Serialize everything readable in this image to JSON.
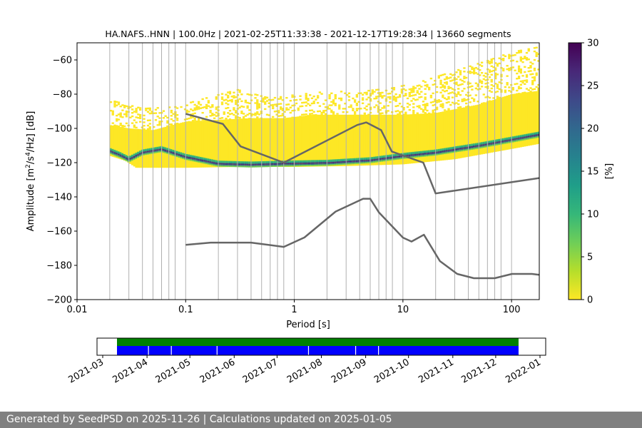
{
  "chart_data": [
    {
      "type": "heatmap",
      "title": "HA.NAFS..HNN | 100.0Hz | 2021-02-25T11:33:38 - 2021-12-17T19:28:34 | 13660 segments",
      "xlabel": "Period [s]",
      "ylabel_main": "Amplitude [m",
      "ylabel_unit_a": "2",
      "ylabel_mid": "/s",
      "ylabel_unit_b": "4",
      "ylabel_end": "/Hz] [dB]",
      "xscale": "log",
      "xlim": [
        0.01,
        180
      ],
      "ylim": [
        -200,
        -50
      ],
      "x_ticks": [
        0.01,
        0.1,
        1,
        10,
        100
      ],
      "x_tick_labels": [
        "0.01",
        "0.1",
        "1",
        "10",
        "100"
      ],
      "y_ticks": [
        -200,
        -180,
        -160,
        -140,
        -120,
        -100,
        -80,
        -60
      ],
      "y_tick_labels": [
        "−200",
        "−180",
        "−160",
        "−140",
        "−120",
        "−100",
        "−80",
        "−60"
      ],
      "vertical_grid_periods": [
        0.02,
        0.03,
        0.04,
        0.05,
        0.06,
        0.07,
        0.08,
        0.1,
        0.2,
        0.3,
        0.4,
        0.5,
        0.6,
        0.7,
        0.8,
        1,
        2,
        3,
        4,
        5,
        6,
        7,
        8,
        10,
        20,
        30,
        40,
        50,
        60,
        70,
        80,
        100
      ],
      "noise_model_high": {
        "period": [
          0.1,
          0.22,
          0.32,
          0.8,
          3.8,
          4.6,
          6.3,
          7.9,
          15.4,
          20,
          180
        ],
        "db": [
          -91.5,
          -97.4,
          -110.5,
          -120,
          -98,
          -96.5,
          -101,
          -113.5,
          -120,
          -138,
          -129
        ]
      },
      "noise_model_low": {
        "period": [
          0.1,
          0.17,
          0.4,
          0.8,
          1.24,
          2.4,
          4.3,
          5,
          6,
          10,
          12,
          15.6,
          21.9,
          31.6,
          45,
          70,
          101,
          154,
          180
        ],
        "db": [
          -168,
          -166.7,
          -166.7,
          -169.2,
          -163.7,
          -148.6,
          -141.1,
          -141.1,
          -149,
          -163.8,
          -166.1,
          -162.1,
          -177.5,
          -185,
          -187.5,
          -187.5,
          -185,
          -185,
          -185.5
        ]
      },
      "colorbar": {
        "label": "[%]",
        "range": [
          0,
          30
        ],
        "ticks": [
          0,
          5,
          10,
          15,
          20,
          25,
          30
        ],
        "tick_labels": [
          "0",
          "5",
          "10",
          "15",
          "20",
          "25",
          "30"
        ],
        "colors": [
          "#fde725",
          "#b5de2b",
          "#6ece58",
          "#35b779",
          "#1f9e89",
          "#26828e",
          "#31688e",
          "#3e4989",
          "#482878",
          "#440154"
        ]
      },
      "psd_distribution": {
        "mode_curve": {
          "period": [
            0.02,
            0.025,
            0.03,
            0.04,
            0.06,
            0.1,
            0.2,
            0.4,
            0.8,
            2,
            5,
            10,
            20,
            50,
            100,
            180
          ],
          "db": [
            -113,
            -115.5,
            -118,
            -114,
            -112,
            -116.5,
            -120.5,
            -121,
            -120.5,
            -120,
            -118.5,
            -116,
            -114,
            -110,
            -106.5,
            -103.5
          ]
        },
        "upper_edge": {
          "period": [
            0.02,
            0.03,
            0.05,
            0.1,
            0.2,
            0.4,
            0.8,
            1.5,
            3,
            6,
            10,
            20,
            50,
            100,
            180
          ],
          "db": [
            -98,
            -100,
            -101,
            -96,
            -95,
            -94,
            -94,
            -92,
            -92,
            -92,
            -92,
            -91,
            -86,
            -80,
            -78
          ]
        },
        "lower_edge": {
          "period": [
            0.02,
            0.028,
            0.035,
            0.1,
            0.3,
            1,
            3,
            10,
            30,
            100,
            180
          ],
          "db": [
            -116,
            -119,
            -123,
            -123,
            -122.5,
            -122.5,
            -122,
            -121,
            -118,
            -112,
            -109
          ]
        },
        "outlier_upper": {
          "period": [
            0.02,
            0.04,
            0.08,
            0.15,
            0.3,
            0.6,
            1,
            2,
            4,
            8,
            15,
            30,
            60,
            100,
            180
          ],
          "db": [
            -83,
            -88,
            -87,
            -82,
            -77,
            -82,
            -80,
            -78,
            -78,
            -76,
            -72,
            -66,
            -60,
            -55,
            -52
          ]
        }
      }
    },
    {
      "type": "timeline",
      "x_ticks": [
        "2021-03",
        "2021-04",
        "2021-05",
        "2021-06",
        "2021-07",
        "2021-08",
        "2021-09",
        "2021-10",
        "2021-11",
        "2021-12",
        "2022-01"
      ],
      "xlim": [
        "2021-02-25",
        "2022-01-05"
      ],
      "data_start": "2021-02-25",
      "data_end": "2021-12-17",
      "gaps": [
        "2021-03-02",
        "2021-04-02",
        "2021-04-18",
        "2021-05-20",
        "2021-07-23",
        "2021-08-25",
        "2021-09-10"
      ],
      "colors": {
        "used": "#008000",
        "available": "#0000ff"
      }
    }
  ],
  "footer": {
    "text": "Generated by SeedPSD on 2025-11-26 | Calculations updated on 2025-01-05"
  }
}
